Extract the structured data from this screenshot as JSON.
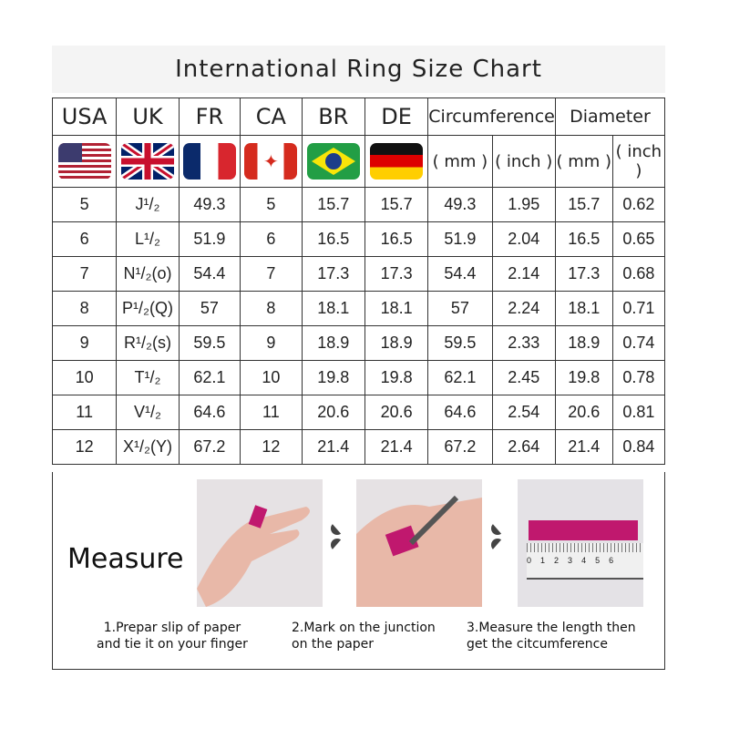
{
  "title": "International Ring Size Chart",
  "headers": [
    "USA",
    "UK",
    "FR",
    "CA",
    "BR",
    "DE",
    "Circumference",
    "Diameter"
  ],
  "flags": [
    "us-flag-icon",
    "uk-flag-icon",
    "france-flag-icon",
    "canada-flag-icon",
    "brazil-flag-icon",
    "germany-flag-icon"
  ],
  "units": [
    "( mm )",
    "( inch )",
    "( mm )",
    "( inch )"
  ],
  "rows": [
    [
      "5",
      "J¹/₂",
      "49.3",
      "5",
      "15.7",
      "15.7",
      "49.3",
      "1.95",
      "15.7",
      "0.62"
    ],
    [
      "6",
      "L¹/₂",
      "51.9",
      "6",
      "16.5",
      "16.5",
      "51.9",
      "2.04",
      "16.5",
      "0.65"
    ],
    [
      "7",
      "N¹/₂(o)",
      "54.4",
      "7",
      "17.3",
      "17.3",
      "54.4",
      "2.14",
      "17.3",
      "0.68"
    ],
    [
      "8",
      "P¹/₂(Q)",
      "57",
      "8",
      "18.1",
      "18.1",
      "57",
      "2.24",
      "18.1",
      "0.71"
    ],
    [
      "9",
      "R¹/₂(s)",
      "59.5",
      "9",
      "18.9",
      "18.9",
      "59.5",
      "2.33",
      "18.9",
      "0.74"
    ],
    [
      "10",
      "T¹/₂",
      "62.1",
      "10",
      "19.8",
      "19.8",
      "62.1",
      "2.45",
      "19.8",
      "0.78"
    ],
    [
      "11",
      "V¹/₂",
      "64.6",
      "11",
      "20.6",
      "20.6",
      "64.6",
      "2.54",
      "20.6",
      "0.81"
    ],
    [
      "12",
      "X¹/₂(Y)",
      "67.2",
      "12",
      "21.4",
      "21.4",
      "67.2",
      "2.64",
      "21.4",
      "0.84"
    ]
  ],
  "measure": {
    "heading": "Measure",
    "steps": [
      {
        "line1": "1.Prepar slip of paper",
        "line2": "and tie it on your finger"
      },
      {
        "line1": "2.Mark on the junction",
        "line2": "on the paper"
      },
      {
        "line1": "3.Measure the length then",
        "line2": "get the citcumference"
      }
    ],
    "ruler_ticks": [
      "0",
      "1",
      "2",
      "3",
      "4",
      "5",
      "6"
    ],
    "accent": "#c0186e"
  }
}
